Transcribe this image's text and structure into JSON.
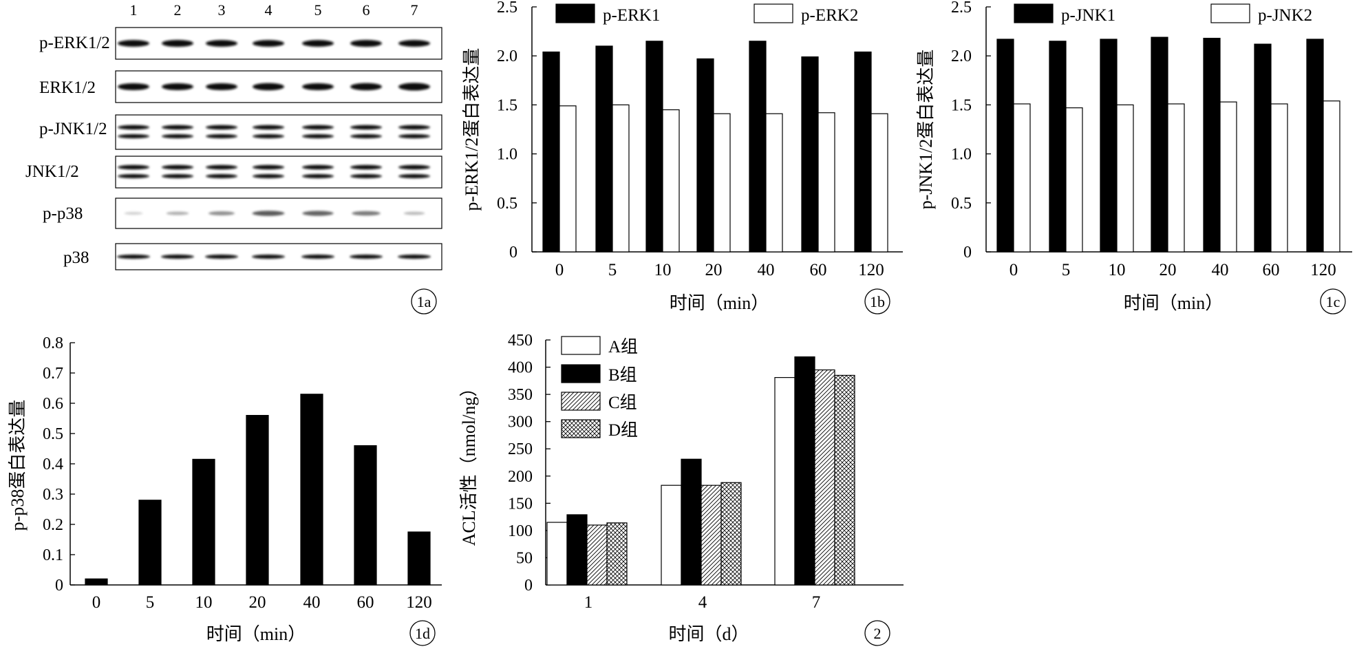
{
  "blot": {
    "lanes": [
      "1",
      "2",
      "3",
      "4",
      "5",
      "6",
      "7"
    ],
    "rows": [
      {
        "label": "p-ERK1/2",
        "pattern": "single-thick",
        "intensity": [
          0.85,
          0.9,
          0.85,
          0.85,
          0.85,
          0.9,
          0.85
        ]
      },
      {
        "label": "ERK1/2",
        "pattern": "single-thick",
        "intensity": [
          0.9,
          0.9,
          0.9,
          0.95,
          0.9,
          0.95,
          1.0
        ]
      },
      {
        "label": "p-JNK1/2",
        "pattern": "double",
        "intensity": [
          0.9,
          0.95,
          0.9,
          0.9,
          0.9,
          0.9,
          0.9
        ]
      },
      {
        "label": "JNK1/2",
        "pattern": "double",
        "intensity": [
          0.9,
          0.9,
          0.9,
          0.9,
          0.9,
          0.9,
          0.9
        ]
      },
      {
        "label": "p-p38",
        "pattern": "single-faint",
        "intensity": [
          0.2,
          0.35,
          0.5,
          0.75,
          0.7,
          0.6,
          0.3
        ]
      },
      {
        "label": "p38",
        "pattern": "single-thin",
        "intensity": [
          0.9,
          0.9,
          0.9,
          0.9,
          0.9,
          0.9,
          0.9
        ]
      }
    ],
    "tag": "1a"
  },
  "chart_data": [
    {
      "id": "1b",
      "type": "bar",
      "categories": [
        "0",
        "5",
        "10",
        "20",
        "40",
        "60",
        "120"
      ],
      "series": [
        {
          "name": "p-ERK1",
          "fill": "black",
          "values": [
            2.04,
            2.1,
            2.15,
            1.97,
            2.15,
            1.99,
            2.04
          ]
        },
        {
          "name": "p-ERK2",
          "fill": "white",
          "values": [
            1.49,
            1.5,
            1.45,
            1.41,
            1.41,
            1.42,
            1.41
          ]
        }
      ],
      "ylabel": "p-ERK1/2蛋白表达量",
      "xlabel": "时间（min）",
      "ylim": [
        0,
        2.5
      ],
      "yticks": [
        0,
        0.5,
        1.0,
        1.5,
        2.0,
        2.5
      ],
      "ytick_labels": [
        "0",
        "0.5",
        "1.0",
        "1.5",
        "2.0",
        "2.5"
      ],
      "legend": "top",
      "grid": false,
      "tag": "1b"
    },
    {
      "id": "1c",
      "type": "bar",
      "categories": [
        "0",
        "5",
        "10",
        "20",
        "40",
        "60",
        "120"
      ],
      "series": [
        {
          "name": "p-JNK1",
          "fill": "black",
          "values": [
            2.17,
            2.15,
            2.17,
            2.19,
            2.18,
            2.12,
            2.17
          ]
        },
        {
          "name": "p-JNK2",
          "fill": "white",
          "values": [
            1.51,
            1.47,
            1.5,
            1.51,
            1.53,
            1.51,
            1.54
          ]
        }
      ],
      "ylabel": "p-JNK1/2蛋白表达量",
      "xlabel": "时间（min）",
      "ylim": [
        0,
        2.5
      ],
      "yticks": [
        0,
        0.5,
        1.0,
        1.5,
        2.0,
        2.5
      ],
      "ytick_labels": [
        "0",
        "0.5",
        "1.0",
        "1.5",
        "2.0",
        "2.5"
      ],
      "legend": "top",
      "grid": false,
      "tag": "1c"
    },
    {
      "id": "1d",
      "type": "bar",
      "categories": [
        "0",
        "5",
        "10",
        "20",
        "40",
        "60",
        "120"
      ],
      "series": [
        {
          "name": "",
          "fill": "black",
          "values": [
            0.02,
            0.28,
            0.415,
            0.56,
            0.63,
            0.46,
            0.175
          ]
        }
      ],
      "ylabel": "p-p38蛋白表达量",
      "xlabel": "时间（min）",
      "ylim": [
        0,
        0.8
      ],
      "yticks": [
        0,
        0.1,
        0.2,
        0.3,
        0.4,
        0.5,
        0.6,
        0.7,
        0.8
      ],
      "ytick_labels": [
        "0",
        "0.1",
        "0.2",
        "0.3",
        "0.4",
        "0.5",
        "0.6",
        "0.7",
        "0.8"
      ],
      "legend": "none",
      "grid": false,
      "tag": "1d"
    },
    {
      "id": "2",
      "type": "bar",
      "categories": [
        "1",
        "4",
        "7"
      ],
      "series": [
        {
          "name": "A组",
          "fill": "white",
          "values": [
            115,
            183,
            381
          ]
        },
        {
          "name": "B组",
          "fill": "black",
          "values": [
            129,
            231,
            419
          ]
        },
        {
          "name": "C组",
          "fill": "hatch",
          "values": [
            110,
            183,
            395
          ]
        },
        {
          "name": "D组",
          "fill": "crosshatch",
          "values": [
            114,
            188,
            385
          ]
        }
      ],
      "ylabel": "ACL活性（nmol/ng）",
      "xlabel": "时间（d）",
      "ylim": [
        0,
        450
      ],
      "yticks": [
        0,
        50,
        100,
        150,
        200,
        250,
        300,
        350,
        400,
        450
      ],
      "ytick_labels": [
        "0",
        "50",
        "100",
        "150",
        "200",
        "250",
        "300",
        "350",
        "400",
        "450"
      ],
      "legend": "top-left",
      "grid": false,
      "tag": "2"
    }
  ]
}
